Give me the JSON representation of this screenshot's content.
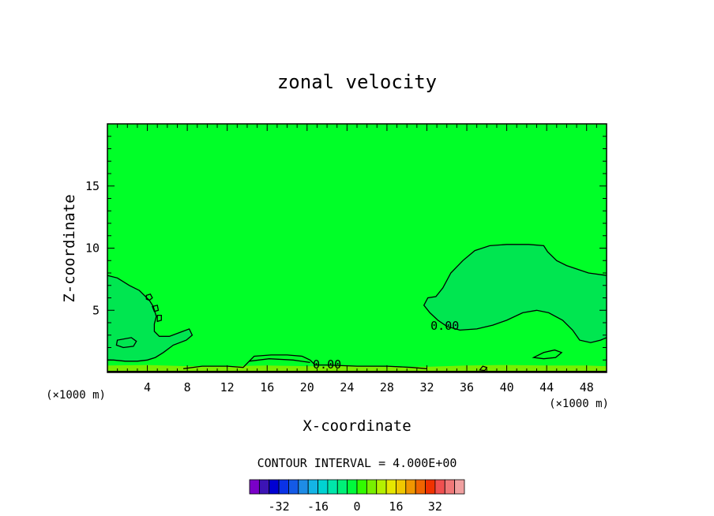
{
  "chart_data": {
    "type": "contour",
    "title": "zonal velocity",
    "xlabel": "X-coordinate",
    "ylabel": "Z-coordinate",
    "x_units": "(×1000 m)",
    "xlim": [
      0,
      50
    ],
    "ylim": [
      0,
      20
    ],
    "x_ticks": [
      4,
      8,
      12,
      16,
      20,
      24,
      28,
      32,
      36,
      40,
      44,
      48
    ],
    "y_ticks": [
      5,
      10,
      15
    ],
    "contour_labels": [
      {
        "text": "0.00",
        "x": 33.8,
        "y": 3.7
      },
      {
        "text": "0.00",
        "x": 22.0,
        "y": 0.6
      }
    ],
    "contour_interval_text": "CONTOUR INTERVAL = 4.000E+00",
    "colorbar": {
      "colors": [
        "#7a00c8",
        "#3c14b4",
        "#0000d2",
        "#0a32e6",
        "#145ae6",
        "#1e8ce6",
        "#14b4e6",
        "#00d2d2",
        "#00e6aa",
        "#00f078",
        "#00fa3c",
        "#32fa00",
        "#78f000",
        "#b4f000",
        "#e6e600",
        "#f0c800",
        "#f09600",
        "#f06400",
        "#f03200",
        "#f05050",
        "#f07878",
        "#f0a0a0"
      ],
      "tick_labels": [
        "-32",
        "-16",
        "0",
        "16",
        "32"
      ],
      "tick_values": [
        -32,
        -16,
        0,
        16,
        32
      ]
    },
    "field_colors": {
      "background": "#00ff28",
      "positive_region": "#00e650",
      "near_ground": "#78ee00"
    },
    "regions": [
      {
        "name": "left-lobe",
        "points": [
          [
            0,
            7.8
          ],
          [
            1,
            7.6
          ],
          [
            2.2,
            7.0
          ],
          [
            3.2,
            6.6
          ],
          [
            4.2,
            5.8
          ],
          [
            4.6,
            5.3
          ],
          [
            4.9,
            4.5
          ],
          [
            4.7,
            3.9
          ],
          [
            4.7,
            3.3
          ],
          [
            5.2,
            2.9
          ],
          [
            6.2,
            2.9
          ],
          [
            7.2,
            3.2
          ],
          [
            8.2,
            3.5
          ],
          [
            8.5,
            3.0
          ],
          [
            7.9,
            2.6
          ],
          [
            6.6,
            2.2
          ],
          [
            5.6,
            1.6
          ],
          [
            4.8,
            1.2
          ],
          [
            4.0,
            1.0
          ],
          [
            3.0,
            0.9
          ],
          [
            1.8,
            0.9
          ],
          [
            0.6,
            1.0
          ],
          [
            0,
            1.0
          ]
        ]
      },
      {
        "name": "right-lobe",
        "points": [
          [
            50,
            7.8
          ],
          [
            48.2,
            8.0
          ],
          [
            46.0,
            8.6
          ],
          [
            45.0,
            9.0
          ],
          [
            44.1,
            9.7
          ],
          [
            43.7,
            10.2
          ],
          [
            42.2,
            10.3
          ],
          [
            40.0,
            10.3
          ],
          [
            38.3,
            10.2
          ],
          [
            36.8,
            9.8
          ],
          [
            35.6,
            9.0
          ],
          [
            34.4,
            8.0
          ],
          [
            33.6,
            6.8
          ],
          [
            32.9,
            6.1
          ],
          [
            32.1,
            6.0
          ],
          [
            31.7,
            5.4
          ],
          [
            32.3,
            4.8
          ],
          [
            33.1,
            4.2
          ],
          [
            34.0,
            3.7
          ],
          [
            35.3,
            3.4
          ],
          [
            37.0,
            3.5
          ],
          [
            38.6,
            3.8
          ],
          [
            40.0,
            4.2
          ],
          [
            41.6,
            4.8
          ],
          [
            43.0,
            5.0
          ],
          [
            44.2,
            4.8
          ],
          [
            45.6,
            4.2
          ],
          [
            46.6,
            3.4
          ],
          [
            47.3,
            2.6
          ],
          [
            48.4,
            2.4
          ],
          [
            49.4,
            2.6
          ],
          [
            50,
            2.8
          ]
        ]
      }
    ],
    "contour_lines": [
      {
        "closed": false,
        "points": [
          [
            0,
            7.8
          ],
          [
            1,
            7.6
          ],
          [
            2.2,
            7.0
          ],
          [
            3.2,
            6.6
          ],
          [
            4.2,
            5.8
          ],
          [
            4.6,
            5.3
          ],
          [
            4.9,
            4.5
          ],
          [
            4.7,
            3.9
          ],
          [
            4.7,
            3.3
          ],
          [
            5.2,
            2.9
          ],
          [
            6.2,
            2.9
          ],
          [
            7.2,
            3.2
          ],
          [
            8.2,
            3.5
          ],
          [
            8.5,
            3.0
          ],
          [
            7.9,
            2.6
          ],
          [
            6.6,
            2.2
          ],
          [
            5.6,
            1.6
          ],
          [
            4.8,
            1.2
          ],
          [
            4.0,
            1.0
          ],
          [
            3.0,
            0.9
          ],
          [
            1.8,
            0.9
          ],
          [
            0.6,
            1.0
          ],
          [
            0,
            1.0
          ]
        ]
      },
      {
        "closed": true,
        "points": [
          [
            3.9,
            6.2
          ],
          [
            4.3,
            6.3
          ],
          [
            4.5,
            6.0
          ],
          [
            4.2,
            5.8
          ],
          [
            3.9,
            5.9
          ]
        ]
      },
      {
        "closed": true,
        "points": [
          [
            4.5,
            5.3
          ],
          [
            5.0,
            5.4
          ],
          [
            5.1,
            5.0
          ],
          [
            4.7,
            4.9
          ]
        ]
      },
      {
        "closed": true,
        "points": [
          [
            5.0,
            4.6
          ],
          [
            5.4,
            4.6
          ],
          [
            5.4,
            4.2
          ],
          [
            5.0,
            4.1
          ]
        ]
      },
      {
        "closed": true,
        "points": [
          [
            1.0,
            2.6
          ],
          [
            2.4,
            2.8
          ],
          [
            2.9,
            2.5
          ],
          [
            2.6,
            2.1
          ],
          [
            1.6,
            2.0
          ],
          [
            0.9,
            2.2
          ]
        ]
      },
      {
        "closed": false,
        "points": [
          [
            7.6,
            0.3
          ],
          [
            9.5,
            0.5
          ],
          [
            12.0,
            0.5
          ],
          [
            13.6,
            0.4
          ],
          [
            14.2,
            0.9
          ],
          [
            14.7,
            1.3
          ],
          [
            16.4,
            1.4
          ],
          [
            18.0,
            1.4
          ],
          [
            19.5,
            1.3
          ],
          [
            20.3,
            1.0
          ],
          [
            20.8,
            0.6
          ],
          [
            22.0,
            0.6
          ],
          [
            25.0,
            0.5
          ],
          [
            28.0,
            0.5
          ],
          [
            30.5,
            0.4
          ],
          [
            32.0,
            0.3
          ]
        ]
      },
      {
        "closed": false,
        "points": [
          [
            14.2,
            0.9
          ],
          [
            16.2,
            1.1
          ],
          [
            18.6,
            1.0
          ],
          [
            20.3,
            0.8
          ]
        ]
      },
      {
        "closed": false,
        "points": [
          [
            50,
            7.8
          ],
          [
            48.2,
            8.0
          ],
          [
            46.0,
            8.6
          ],
          [
            45.0,
            9.0
          ],
          [
            44.1,
            9.7
          ],
          [
            43.7,
            10.2
          ],
          [
            42.2,
            10.3
          ],
          [
            40.0,
            10.3
          ],
          [
            38.3,
            10.2
          ],
          [
            36.8,
            9.8
          ],
          [
            35.6,
            9.0
          ],
          [
            34.4,
            8.0
          ],
          [
            33.6,
            6.8
          ],
          [
            32.9,
            6.1
          ],
          [
            32.1,
            6.0
          ],
          [
            31.7,
            5.4
          ],
          [
            32.3,
            4.8
          ],
          [
            33.1,
            4.2
          ],
          [
            34.0,
            3.7
          ],
          [
            35.3,
            3.4
          ],
          [
            37.0,
            3.5
          ],
          [
            38.6,
            3.8
          ],
          [
            40.0,
            4.2
          ],
          [
            41.6,
            4.8
          ],
          [
            43.0,
            5.0
          ],
          [
            44.2,
            4.8
          ],
          [
            45.6,
            4.2
          ],
          [
            46.6,
            3.4
          ],
          [
            47.3,
            2.6
          ],
          [
            48.4,
            2.4
          ],
          [
            49.4,
            2.6
          ],
          [
            50,
            2.8
          ]
        ]
      },
      {
        "closed": true,
        "points": [
          [
            42.7,
            1.2
          ],
          [
            43.7,
            1.6
          ],
          [
            44.8,
            1.8
          ],
          [
            45.5,
            1.6
          ],
          [
            44.9,
            1.2
          ],
          [
            43.7,
            1.1
          ]
        ]
      },
      {
        "closed": true,
        "points": [
          [
            37.3,
            0.2
          ],
          [
            37.6,
            0.5
          ],
          [
            38.0,
            0.4
          ],
          [
            37.8,
            0.15
          ]
        ]
      }
    ],
    "ground_band": [
      [
        0,
        0
      ],
      [
        0,
        0.55
      ],
      [
        4,
        0.6
      ],
      [
        8,
        0.5
      ],
      [
        12,
        0.5
      ],
      [
        16,
        0.55
      ],
      [
        20,
        0.5
      ],
      [
        24,
        0.5
      ],
      [
        28,
        0.45
      ],
      [
        32,
        0.45
      ],
      [
        36,
        0.55
      ],
      [
        40,
        0.6
      ],
      [
        44,
        0.55
      ],
      [
        48,
        0.55
      ],
      [
        50,
        0.5
      ],
      [
        50,
        0
      ]
    ]
  }
}
